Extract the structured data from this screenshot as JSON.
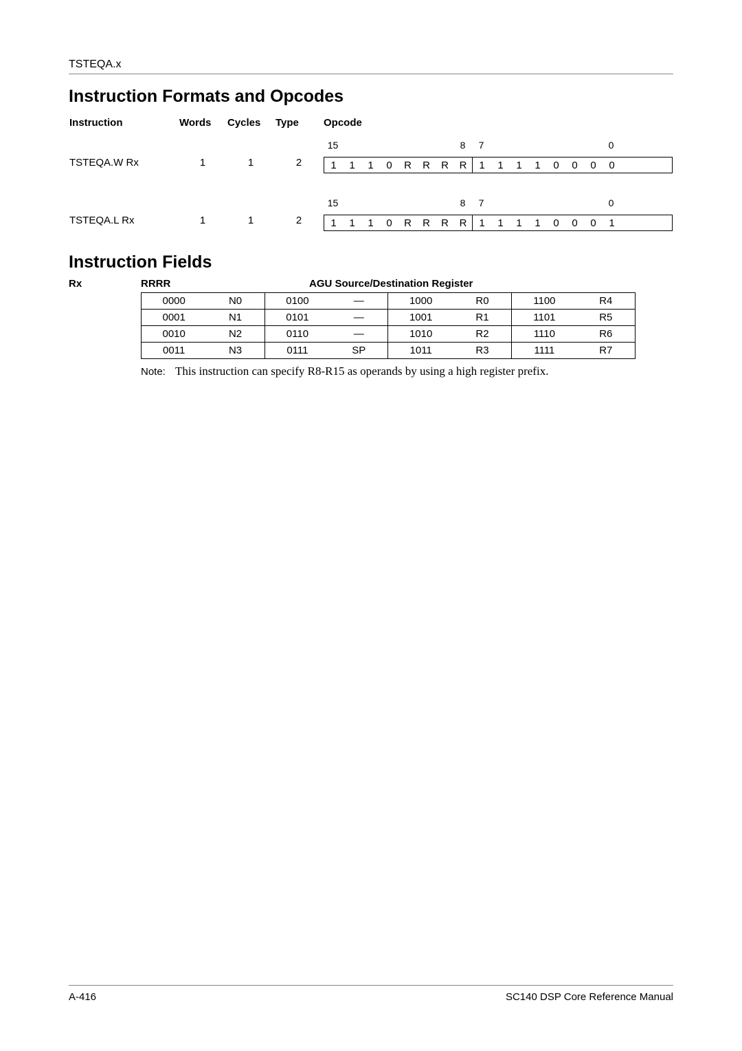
{
  "header": {
    "section": "TSTEQA.x"
  },
  "titles": {
    "formats": "Instruction Formats and Opcodes",
    "fields": "Instruction Fields"
  },
  "formats": {
    "columns": {
      "instruction": "Instruction",
      "words": "Words",
      "cycles": "Cycles",
      "type": "Type",
      "opcode": "Opcode"
    },
    "bit_labels": {
      "hi_left": "15",
      "hi_right": "8",
      "lo_left": "7",
      "lo_right": "0"
    },
    "rows": [
      {
        "instruction": "TSTEQA.W Rx",
        "words": "1",
        "cycles": "1",
        "type": "2",
        "bits": [
          "1",
          "1",
          "1",
          "0",
          "R",
          "R",
          "R",
          "R",
          "1",
          "1",
          "1",
          "1",
          "0",
          "0",
          "0",
          "0"
        ]
      },
      {
        "instruction": "TSTEQA.L Rx",
        "words": "1",
        "cycles": "1",
        "type": "2",
        "bits": [
          "1",
          "1",
          "1",
          "0",
          "R",
          "R",
          "R",
          "R",
          "1",
          "1",
          "1",
          "1",
          "0",
          "0",
          "0",
          "1"
        ]
      }
    ]
  },
  "fields_header": {
    "rx": "Rx",
    "rrrr": "RRRR",
    "title": "AGU Source/Destination Register"
  },
  "reg_table": {
    "rows": [
      [
        {
          "code": "0000",
          "name": "N0"
        },
        {
          "code": "0100",
          "name": "—"
        },
        {
          "code": "1000",
          "name": "R0"
        },
        {
          "code": "1100",
          "name": "R4"
        }
      ],
      [
        {
          "code": "0001",
          "name": "N1"
        },
        {
          "code": "0101",
          "name": "—"
        },
        {
          "code": "1001",
          "name": "R1"
        },
        {
          "code": "1101",
          "name": "R5"
        }
      ],
      [
        {
          "code": "0010",
          "name": "N2"
        },
        {
          "code": "0110",
          "name": "—"
        },
        {
          "code": "1010",
          "name": "R2"
        },
        {
          "code": "1110",
          "name": "R6"
        }
      ],
      [
        {
          "code": "0011",
          "name": "N3"
        },
        {
          "code": "0111",
          "name": "SP"
        },
        {
          "code": "1011",
          "name": "R3"
        },
        {
          "code": "1111",
          "name": "R7"
        }
      ]
    ]
  },
  "note": {
    "label": "Note:",
    "text": "This instruction can specify R8-R15 as operands by using a high register prefix."
  },
  "footer": {
    "page": "A-416",
    "manual": "SC140 DSP Core Reference Manual"
  }
}
